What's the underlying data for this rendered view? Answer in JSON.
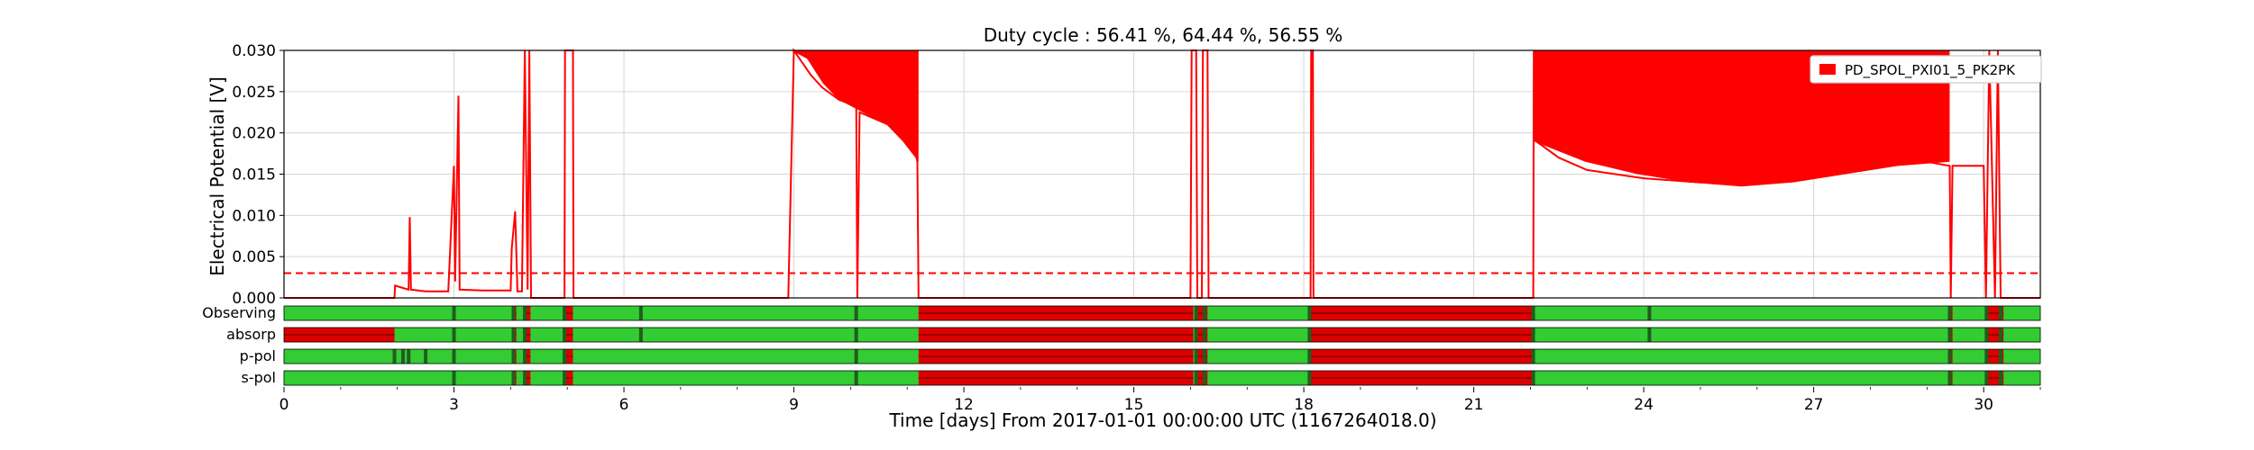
{
  "chart_data": {
    "type": "line",
    "title": "Duty cycle : 56.41 %, 64.44 %, 56.55 %",
    "xlabel": "Time [days] From 2017-01-01 00:00:00 UTC (1167264018.0)",
    "ylabel": "Electrical Potential [V]",
    "xlim": [
      0,
      31
    ],
    "ylim": [
      0,
      0.03
    ],
    "xticks": [
      0,
      3,
      6,
      9,
      12,
      15,
      18,
      21,
      24,
      27,
      30
    ],
    "yticks": [
      "0.000",
      "0.005",
      "0.010",
      "0.015",
      "0.020",
      "0.025",
      "0.030"
    ],
    "grid": true,
    "legend_position": "top-right",
    "threshold": 0.003,
    "colors": {
      "series": "#ff0000",
      "threshold": "#ff0000",
      "active": "#33cc33",
      "inactive": "#dd0000",
      "transition": "#1f5f1f"
    },
    "series": [
      {
        "name": "PD_SPOL_PXI01_5_PK2PK",
        "points": [
          [
            0,
            0.0
          ],
          [
            1.95,
            0.0
          ],
          [
            1.96,
            0.0015
          ],
          [
            2.1,
            0.0012
          ],
          [
            2.2,
            0.001
          ],
          [
            2.22,
            0.0098
          ],
          [
            2.24,
            0.001
          ],
          [
            2.5,
            0.0008
          ],
          [
            2.9,
            0.0008
          ],
          [
            3.0,
            0.016
          ],
          [
            3.02,
            0.002
          ],
          [
            3.08,
            0.0245
          ],
          [
            3.1,
            0.001
          ],
          [
            3.5,
            0.0009
          ],
          [
            4.0,
            0.0009
          ],
          [
            4.02,
            0.006
          ],
          [
            4.08,
            0.0105
          ],
          [
            4.12,
            0.0008
          ],
          [
            4.2,
            0.0008
          ],
          [
            4.25,
            0.03
          ],
          [
            4.3,
            0.001
          ],
          [
            4.33,
            0.03
          ],
          [
            4.36,
            0.0
          ],
          [
            4.95,
            0.0
          ],
          [
            4.96,
            0.03
          ],
          [
            5.1,
            0.03
          ],
          [
            5.11,
            0.0
          ],
          [
            8.9,
            0.0
          ],
          [
            9.0,
            0.03
          ],
          [
            9.1,
            0.029
          ],
          [
            9.3,
            0.027
          ],
          [
            9.5,
            0.0255
          ],
          [
            9.8,
            0.024
          ],
          [
            10.0,
            0.0235
          ],
          [
            10.1,
            0.0232
          ],
          [
            10.12,
            0.0
          ],
          [
            10.16,
            0.0225
          ],
          [
            10.5,
            0.0215
          ],
          [
            11.0,
            0.02
          ],
          [
            11.1,
            0.019
          ],
          [
            11.18,
            0.0165
          ],
          [
            11.2,
            0.0
          ],
          [
            16.0,
            0.0
          ],
          [
            16.02,
            0.03
          ],
          [
            16.1,
            0.03
          ],
          [
            16.12,
            0.0
          ],
          [
            16.2,
            0.0
          ],
          [
            16.22,
            0.03
          ],
          [
            16.3,
            0.03
          ],
          [
            16.32,
            0.0
          ],
          [
            18.12,
            0.0
          ],
          [
            18.13,
            0.03
          ],
          [
            18.16,
            0.03
          ],
          [
            18.17,
            0.0
          ],
          [
            22.05,
            0.0
          ],
          [
            22.06,
            0.03
          ],
          [
            22.1,
            0.019
          ],
          [
            22.5,
            0.017
          ],
          [
            23.0,
            0.0155
          ],
          [
            24.0,
            0.0145
          ],
          [
            25.0,
            0.014
          ],
          [
            26.0,
            0.015
          ],
          [
            27.0,
            0.016
          ],
          [
            28.0,
            0.0165
          ],
          [
            29.0,
            0.0165
          ],
          [
            29.4,
            0.016
          ],
          [
            29.42,
            0.0
          ],
          [
            29.45,
            0.016
          ],
          [
            30.0,
            0.016
          ],
          [
            30.04,
            0.0
          ],
          [
            30.1,
            0.03
          ],
          [
            30.2,
            0.0
          ],
          [
            30.25,
            0.03
          ],
          [
            30.3,
            0.0
          ],
          [
            31.0,
            0.0
          ]
        ],
        "bands": [
          {
            "x": [
              8.95,
              11.2
            ],
            "ymin": [
              0.03,
              0.029,
              0.026,
              0.024,
              0.023,
              0.022,
              0.021,
              0.019,
              0.0165
            ],
            "ymax": 0.03
          },
          {
            "x": [
              22.05,
              29.4
            ],
            "ymin": [
              0.019,
              0.0165,
              0.015,
              0.014,
              0.0135,
              0.014,
              0.015,
              0.016,
              0.0165
            ],
            "ymax": 0.03
          }
        ]
      }
    ],
    "segments": [
      {
        "label": "Observing",
        "on": [
          [
            0,
            4.05
          ],
          [
            4.1,
            4.25
          ],
          [
            4.35,
            4.95
          ],
          [
            5.1,
            11.2
          ],
          [
            16.05,
            16.1
          ],
          [
            16.3,
            18.12
          ],
          [
            22.05,
            29.4
          ],
          [
            29.45,
            30.05
          ],
          [
            30.35,
            31.0
          ]
        ],
        "transitions": [
          3.0,
          4.05,
          4.25,
          4.95,
          6.3,
          10.1,
          16.1,
          16.25,
          18.1,
          22.05,
          24.1,
          29.4,
          30.05,
          30.3
        ]
      },
      {
        "label": "absorp",
        "on": [
          [
            1.95,
            4.05
          ],
          [
            4.1,
            4.25
          ],
          [
            4.35,
            4.95
          ],
          [
            5.1,
            11.2
          ],
          [
            16.05,
            16.1
          ],
          [
            16.3,
            18.12
          ],
          [
            22.05,
            29.4
          ],
          [
            29.45,
            30.05
          ],
          [
            30.35,
            31.0
          ]
        ],
        "transitions": [
          3.0,
          4.05,
          4.25,
          4.95,
          6.3,
          10.1,
          16.1,
          16.25,
          18.1,
          22.05,
          24.1,
          29.4,
          30.05,
          30.3
        ]
      },
      {
        "label": "p-pol",
        "on": [
          [
            0,
            4.05
          ],
          [
            4.1,
            4.25
          ],
          [
            4.35,
            4.95
          ],
          [
            5.1,
            11.2
          ],
          [
            16.05,
            16.1
          ],
          [
            16.3,
            18.12
          ],
          [
            22.05,
            29.4
          ],
          [
            29.45,
            30.05
          ],
          [
            30.35,
            31.0
          ]
        ],
        "transitions": [
          1.95,
          2.1,
          2.2,
          2.5,
          3.0,
          4.05,
          4.25,
          4.95,
          10.1,
          16.1,
          16.25,
          18.1,
          22.05,
          29.4,
          30.05,
          30.3
        ]
      },
      {
        "label": "s-pol",
        "on": [
          [
            0,
            4.05
          ],
          [
            4.1,
            4.25
          ],
          [
            4.35,
            4.95
          ],
          [
            5.1,
            11.2
          ],
          [
            16.05,
            16.1
          ],
          [
            16.3,
            18.12
          ],
          [
            22.05,
            29.4
          ],
          [
            29.45,
            30.05
          ],
          [
            30.35,
            31.0
          ]
        ],
        "transitions": [
          3.0,
          4.05,
          4.25,
          4.95,
          10.1,
          16.1,
          16.25,
          18.1,
          22.05,
          29.4,
          30.05,
          30.3
        ]
      }
    ]
  }
}
